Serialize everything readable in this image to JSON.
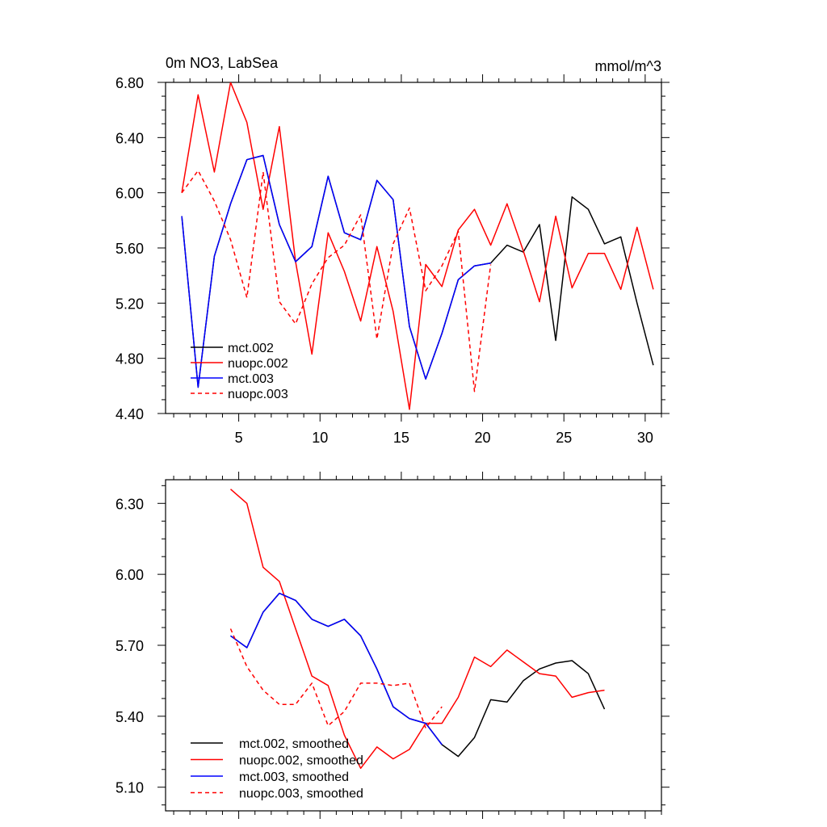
{
  "colors": {
    "black": "#000000",
    "red": "#ff0000",
    "blue": "#0000ff"
  },
  "chart_data": [
    {
      "type": "line",
      "title": "0m NO3, LabSea",
      "units": "mmol/m^3",
      "xlim": [
        0.5,
        31
      ],
      "ylim": [
        4.4,
        6.8
      ],
      "x_ticks": [
        5,
        10,
        15,
        20,
        25,
        30
      ],
      "x_tick_labels": [
        "5",
        "10",
        "15",
        "20",
        "25",
        "30"
      ],
      "y_ticks": [
        4.4,
        4.8,
        5.2,
        5.6,
        6.0,
        6.4,
        6.8
      ],
      "y_tick_labels": [
        "4.40",
        "4.80",
        "5.20",
        "5.60",
        "6.00",
        "6.40",
        "6.80"
      ],
      "legend_position": "bottom-left",
      "series": [
        {
          "name": "mct.002",
          "color": "#000000",
          "dash": false,
          "x": [
            1.5,
            2.5,
            3.5,
            4.5,
            5.5,
            6.5,
            7.5,
            8.5,
            9.5,
            10.5,
            11.5,
            12.5,
            13.5,
            14.5,
            15.5,
            16.5,
            17.5,
            18.5,
            19.5,
            20.5,
            21.5,
            22.5,
            23.5,
            24.5,
            25.5,
            26.5,
            27.5,
            28.5,
            29.5,
            30.5
          ],
          "values": [
            5.83,
            4.59,
            5.54,
            5.92,
            6.24,
            6.27,
            5.77,
            5.5,
            5.61,
            6.12,
            5.71,
            5.66,
            6.09,
            5.95,
            5.03,
            4.65,
            4.98,
            5.37,
            5.47,
            5.49,
            5.62,
            5.57,
            5.77,
            4.93,
            5.97,
            5.88,
            5.63,
            5.68,
            5.2,
            4.75
          ]
        },
        {
          "name": "nuopc.002",
          "color": "#ff0000",
          "dash": false,
          "x": [
            1.5,
            2.5,
            3.5,
            4.5,
            5.5,
            6.5,
            7.5,
            8.5,
            9.5,
            10.5,
            11.5,
            12.5,
            13.5,
            14.5,
            15.5,
            16.5,
            17.5,
            18.5,
            19.5,
            20.5,
            21.5,
            22.5,
            23.5,
            24.5,
            25.5,
            26.5,
            27.5,
            28.5,
            29.5,
            30.5
          ],
          "values": [
            6.0,
            6.71,
            6.15,
            6.8,
            6.51,
            5.88,
            6.48,
            5.5,
            4.83,
            5.71,
            5.43,
            5.07,
            5.61,
            5.14,
            4.43,
            5.48,
            5.32,
            5.73,
            5.88,
            5.62,
            5.92,
            5.58,
            5.21,
            5.83,
            5.31,
            5.56,
            5.56,
            5.3,
            5.75,
            5.3
          ]
        },
        {
          "name": "mct.003",
          "color": "#0000ff",
          "dash": false,
          "x": [
            1.5,
            2.5,
            3.5,
            4.5,
            5.5,
            6.5,
            7.5,
            8.5,
            9.5,
            10.5,
            11.5,
            12.5,
            13.5,
            14.5,
            15.5,
            16.5,
            17.5,
            18.5,
            19.5,
            20.5
          ],
          "values": [
            5.83,
            4.59,
            5.54,
            5.92,
            6.24,
            6.27,
            5.77,
            5.5,
            5.61,
            6.12,
            5.71,
            5.66,
            6.09,
            5.95,
            5.03,
            4.65,
            4.98,
            5.37,
            5.47,
            5.49
          ]
        },
        {
          "name": "nuopc.003",
          "color": "#ff0000",
          "dash": true,
          "x": [
            1.5,
            2.5,
            3.5,
            4.5,
            5.5,
            6.5,
            7.5,
            8.5,
            9.5,
            10.5,
            11.5,
            12.5,
            13.5,
            14.5,
            15.5,
            16.5,
            17.5,
            18.5,
            19.5,
            20.5
          ],
          "values": [
            6.0,
            6.16,
            5.94,
            5.66,
            5.24,
            6.15,
            5.21,
            5.05,
            5.34,
            5.53,
            5.62,
            5.84,
            4.94,
            5.63,
            5.89,
            5.29,
            5.47,
            5.72,
            4.56,
            5.48
          ]
        }
      ]
    },
    {
      "type": "line",
      "title": "",
      "units": "",
      "xlim": [
        0.5,
        31
      ],
      "ylim": [
        5.0,
        6.4
      ],
      "x_ticks": [
        5,
        10,
        15,
        20,
        25,
        30
      ],
      "x_tick_labels": [],
      "y_ticks": [
        5.1,
        5.4,
        5.7,
        6.0,
        6.3
      ],
      "y_tick_labels": [
        "5.10",
        "5.40",
        "5.70",
        "6.00",
        "6.30"
      ],
      "legend_position": "bottom-left",
      "series": [
        {
          "name": "mct.002, smoothed",
          "color": "#000000",
          "dash": false,
          "x": [
            4.5,
            5.5,
            6.5,
            7.5,
            8.5,
            9.5,
            10.5,
            11.5,
            12.5,
            13.5,
            14.5,
            15.5,
            16.5,
            17.5,
            18.5,
            19.5,
            20.5,
            21.5,
            22.5,
            23.5,
            24.5,
            25.5,
            26.5,
            27.5
          ],
          "values": [
            5.74,
            5.69,
            5.84,
            5.92,
            5.89,
            5.81,
            5.78,
            5.81,
            5.74,
            5.6,
            5.44,
            5.39,
            5.37,
            5.28,
            5.23,
            5.31,
            5.47,
            5.46,
            5.55,
            5.6,
            5.625,
            5.635,
            5.58,
            5.43
          ]
        },
        {
          "name": "nuopc.002, smoothed",
          "color": "#ff0000",
          "dash": false,
          "x": [
            4.5,
            5.5,
            6.5,
            7.5,
            8.5,
            9.5,
            10.5,
            11.5,
            12.5,
            13.5,
            14.5,
            15.5,
            16.5,
            17.5,
            18.5,
            19.5,
            20.5,
            21.5,
            22.5,
            23.5,
            24.5,
            25.5,
            26.5,
            27.5
          ],
          "values": [
            6.36,
            6.3,
            6.03,
            5.97,
            5.77,
            5.57,
            5.53,
            5.32,
            5.18,
            5.27,
            5.22,
            5.26,
            5.37,
            5.37,
            5.48,
            5.65,
            5.61,
            5.68,
            5.63,
            5.58,
            5.57,
            5.48,
            5.5,
            5.51
          ]
        },
        {
          "name": "mct.003, smoothed",
          "color": "#0000ff",
          "dash": false,
          "x": [
            4.5,
            5.5,
            6.5,
            7.5,
            8.5,
            9.5,
            10.5,
            11.5,
            12.5,
            13.5,
            14.5,
            15.5,
            16.5,
            17.5
          ],
          "values": [
            5.74,
            5.69,
            5.84,
            5.92,
            5.89,
            5.81,
            5.78,
            5.81,
            5.74,
            5.6,
            5.44,
            5.39,
            5.37,
            5.28
          ]
        },
        {
          "name": "nuopc.003, smoothed",
          "color": "#ff0000",
          "dash": true,
          "x": [
            4.5,
            5.5,
            6.5,
            7.5,
            8.5,
            9.5,
            10.5,
            11.5,
            12.5,
            13.5,
            14.5,
            15.5,
            16.5,
            17.5
          ],
          "values": [
            5.77,
            5.61,
            5.51,
            5.45,
            5.45,
            5.54,
            5.36,
            5.42,
            5.54,
            5.54,
            5.53,
            5.54,
            5.35,
            5.44
          ]
        }
      ]
    }
  ]
}
